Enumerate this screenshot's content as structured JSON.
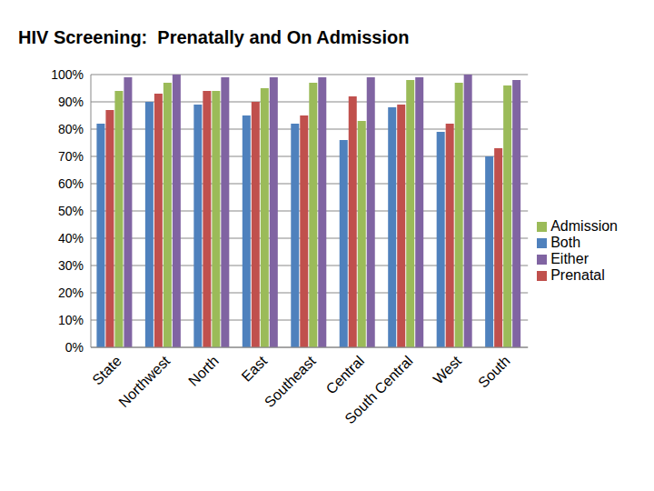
{
  "chart_data": {
    "type": "bar",
    "title": "HIV Screening:  Prenatally and On Admission",
    "categories": [
      "State",
      "Northwest",
      "North",
      "East",
      "Southeast",
      "Central",
      "South Central",
      "West",
      "South"
    ],
    "series": [
      {
        "name": "Both",
        "color": "#4f81bd",
        "values": [
          82,
          90,
          89,
          85,
          82,
          76,
          88,
          79,
          70
        ]
      },
      {
        "name": "Prenatal",
        "color": "#c0504d",
        "values": [
          87,
          93,
          94,
          90,
          85,
          92,
          89,
          82,
          73
        ]
      },
      {
        "name": "Admission",
        "color": "#9bbb59",
        "values": [
          94,
          97,
          94,
          95,
          97,
          83,
          98,
          97,
          96
        ]
      },
      {
        "name": "Either",
        "color": "#8064a2",
        "values": [
          99,
          100,
          99,
          99,
          99,
          99,
          99,
          100,
          98
        ]
      }
    ],
    "ylim": [
      0,
      100
    ],
    "yticks": [
      {
        "value": 0,
        "label": "0%"
      },
      {
        "value": 10,
        "label": "10%"
      },
      {
        "value": 20,
        "label": "20%"
      },
      {
        "value": 30,
        "label": "30%"
      },
      {
        "value": 40,
        "label": "40%"
      },
      {
        "value": 50,
        "label": "50%"
      },
      {
        "value": 60,
        "label": "60%"
      },
      {
        "value": 70,
        "label": "70%"
      },
      {
        "value": 80,
        "label": "80%"
      },
      {
        "value": 90,
        "label": "90%"
      },
      {
        "value": 100,
        "label": "100%"
      }
    ],
    "grid": true,
    "legend": "right"
  }
}
